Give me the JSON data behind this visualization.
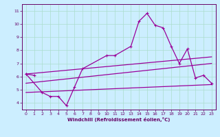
{
  "background_color": "#cceeff",
  "line_color": "#990099",
  "xlabel": "Windchill (Refroidissement éolien,°C)",
  "xlabel_color": "#660066",
  "xlim": [
    -0.5,
    23.5
  ],
  "ylim": [
    3.5,
    11.5
  ],
  "yticks": [
    4,
    5,
    6,
    7,
    8,
    9,
    10,
    11
  ],
  "xticks": [
    0,
    1,
    2,
    3,
    4,
    5,
    6,
    7,
    8,
    9,
    10,
    11,
    12,
    13,
    14,
    15,
    16,
    17,
    18,
    19,
    20,
    21,
    22,
    23
  ],
  "grid_color": "#aaddcc",
  "series1_x": [
    0,
    1
  ],
  "series1_y": [
    6.2,
    6.1
  ],
  "series2_x": [
    0,
    2,
    3,
    4,
    5,
    6,
    7,
    10,
    11,
    13,
    14,
    15,
    16,
    17,
    18,
    19,
    20,
    21,
    22,
    23
  ],
  "series2_y": [
    6.2,
    4.8,
    4.5,
    4.5,
    3.8,
    5.2,
    6.6,
    7.6,
    7.6,
    8.3,
    10.2,
    10.8,
    9.9,
    9.7,
    8.3,
    7.0,
    8.1,
    5.9,
    6.1,
    5.5
  ],
  "line3": {
    "x": [
      0,
      23
    ],
    "y": [
      4.8,
      5.4
    ]
  },
  "line4": {
    "x": [
      0,
      23
    ],
    "y": [
      5.5,
      7.0
    ]
  },
  "line5": {
    "x": [
      0,
      23
    ],
    "y": [
      6.2,
      7.5
    ]
  }
}
